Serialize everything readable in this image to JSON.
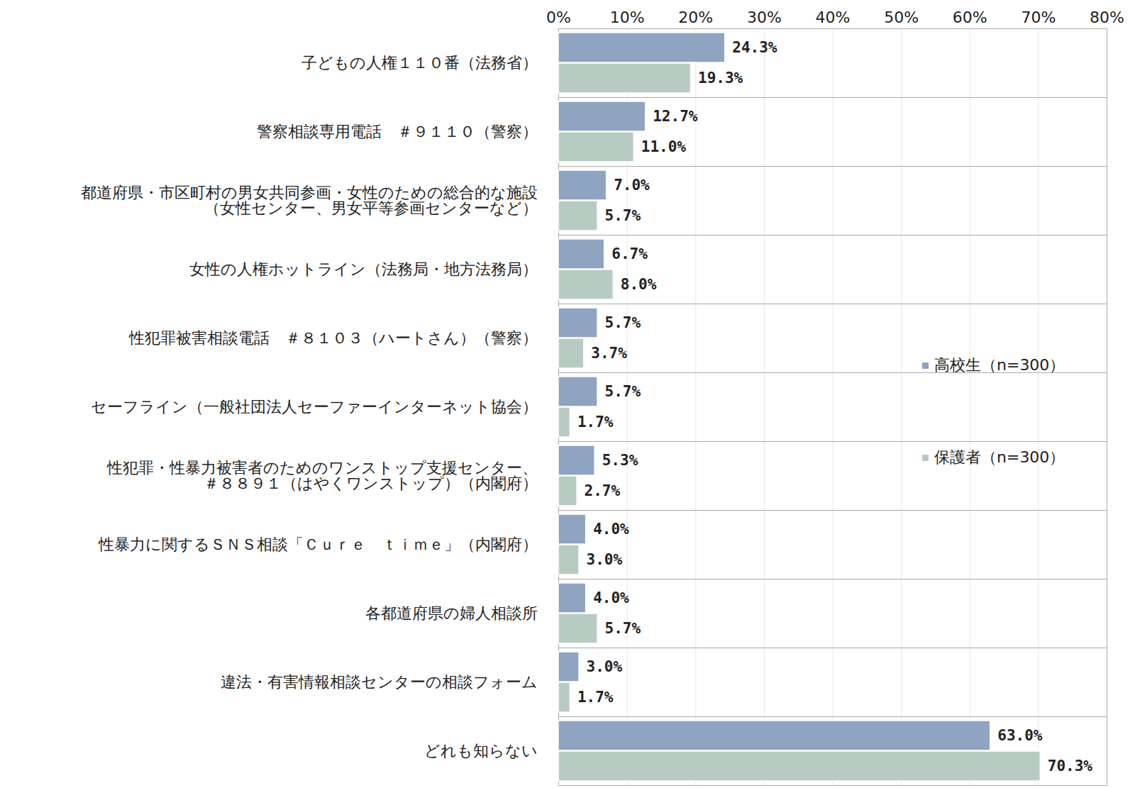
{
  "chart_data": {
    "type": "bar",
    "orientation": "horizontal",
    "categories": [
      "子どもの人権１１０番（法務省）",
      "警察相談専用電話　＃９１１０（警察）",
      "都道府県・市区町村の男女共同参画・女性のための総合的な施設\n（女性センター、男女平等参画センターなど）",
      "女性の人権ホットライン（法務局・地方法務局）",
      "性犯罪被害相談電話　＃８１０３（ハートさん）（警察）",
      "セーフライン（一般社団法人セーファーインターネット協会）",
      "性犯罪・性暴力被害者のためのワンストップ支援センター、\n＃８８９１（はやくワンストップ）（内閣府）",
      "性暴力に関するＳＮＳ相談「Ｃｕｒｅ　ｔｉｍｅ」（内閣府）",
      "各都道府県の婦人相談所",
      "違法・有害情報相談センターの相談フォーム",
      "どれも知らない"
    ],
    "series": [
      {
        "name": "高校生（n=300）",
        "color": "#8ea4c1",
        "values": [
          24.3,
          12.7,
          7.0,
          6.7,
          5.7,
          5.7,
          5.3,
          4.0,
          4.0,
          3.0,
          63.0
        ],
        "value_labels": [
          "24.3%",
          "12.7%",
          "7.0%",
          "6.7%",
          "5.7%",
          "5.7%",
          "5.3%",
          "4.0%",
          "4.0%",
          "3.0%",
          "63.0%"
        ]
      },
      {
        "name": "保護者（n=300）",
        "color": "#b8cbc3",
        "values": [
          19.3,
          11.0,
          5.7,
          8.0,
          3.7,
          1.7,
          2.7,
          3.0,
          5.7,
          1.7,
          70.3
        ],
        "value_labels": [
          "19.3%",
          "11.0%",
          "5.7%",
          "8.0%",
          "3.7%",
          "1.7%",
          "2.7%",
          "3.0%",
          "5.7%",
          "1.7%",
          "70.3%"
        ]
      }
    ],
    "xlim": [
      0,
      80
    ],
    "xticks": [
      {
        "value": 0,
        "label": "0%"
      },
      {
        "value": 10,
        "label": "10%"
      },
      {
        "value": 20,
        "label": "20%"
      },
      {
        "value": 30,
        "label": "30%"
      },
      {
        "value": 40,
        "label": "40%"
      },
      {
        "value": 50,
        "label": "50%"
      },
      {
        "value": 60,
        "label": "60%"
      },
      {
        "value": 70,
        "label": "70%"
      },
      {
        "value": 80,
        "label": "80%"
      }
    ],
    "grid": true,
    "data_labels": true,
    "legend": "right"
  }
}
